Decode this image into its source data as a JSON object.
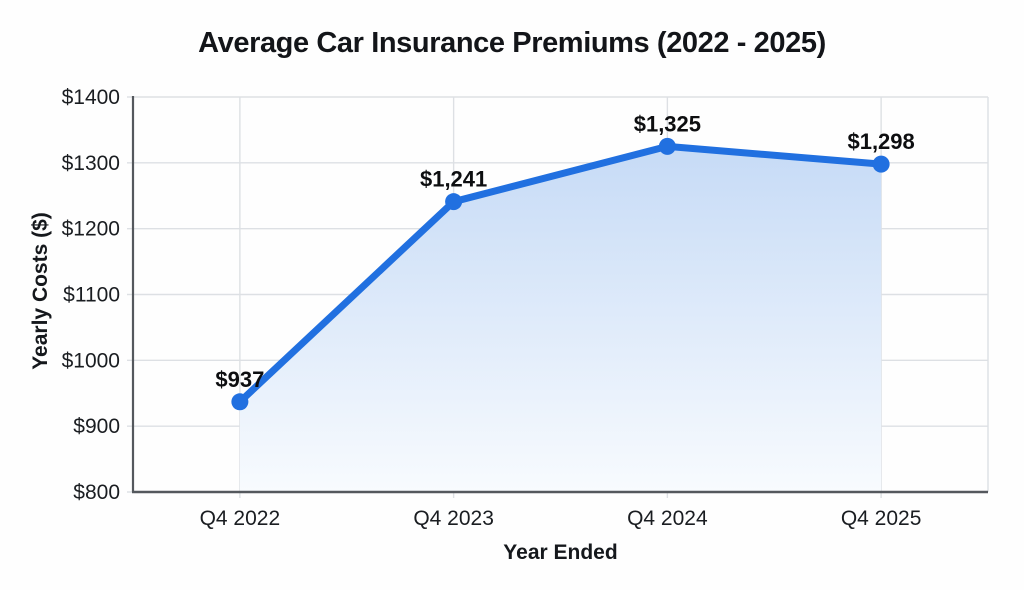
{
  "chart_data": {
    "type": "line",
    "title": "Average Car Insurance Premiums (2022 - 2025)",
    "xlabel": "Year Ended",
    "ylabel": "Yearly Costs ($)",
    "categories": [
      "Q4 2022",
      "Q4 2023",
      "Q4 2024",
      "Q4 2025"
    ],
    "values": [
      937,
      1241,
      1325,
      1298
    ],
    "point_labels": [
      "$937",
      "$1,241",
      "$1,325",
      "$1,298"
    ],
    "ylim": [
      800,
      1400
    ],
    "ytick_step": 100,
    "ytick_labels": [
      "$800",
      "$900",
      "$1000",
      "$1100",
      "$1200",
      "$1300",
      "$1400"
    ],
    "grid": true,
    "legend": "none",
    "line_color": "#2170e0",
    "marker_color": "#2170e0",
    "area_gradient_top": "#bfd6f5",
    "area_gradient_bottom": "#f8fbfe",
    "gridline_color": "#dde0e4",
    "axis_line_color": "#54585d",
    "text_color": "#1a1d21"
  }
}
